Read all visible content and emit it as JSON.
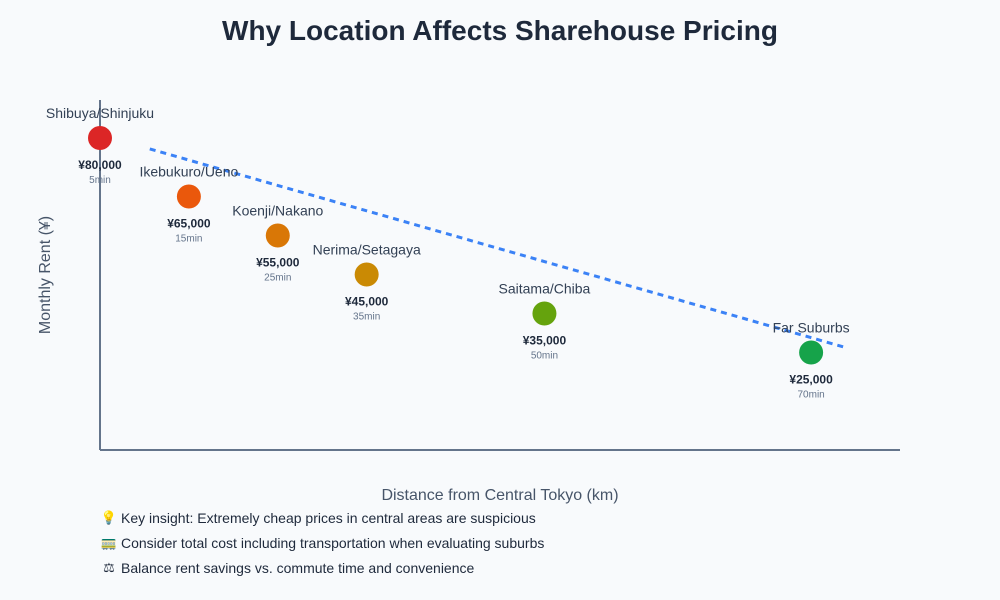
{
  "title": "Why Location Affects Sharehouse Pricing",
  "chart_data": {
    "type": "scatter",
    "title": "Why Location Affects Sharehouse Pricing",
    "xlabel": "Distance from Central Tokyo (km)",
    "ylabel": "Monthly Rent (¥)",
    "xlim": [
      0,
      45
    ],
    "ylim": [
      0,
      100000
    ],
    "grid": false,
    "points": [
      {
        "name": "Shibuya/Shinjuku",
        "x": 0,
        "y": 80000,
        "price_label": "¥80,000",
        "commute": "5min",
        "color": "#dc2626"
      },
      {
        "name": "Ikebukuro/Ueno",
        "x": 5,
        "y": 65000,
        "price_label": "¥65,000",
        "commute": "15min",
        "color": "#ea580c"
      },
      {
        "name": "Koenji/Nakano",
        "x": 10,
        "y": 55000,
        "price_label": "¥55,000",
        "commute": "25min",
        "color": "#d97706"
      },
      {
        "name": "Nerima/Setagaya",
        "x": 15,
        "y": 45000,
        "price_label": "¥45,000",
        "commute": "35min",
        "color": "#ca8a04"
      },
      {
        "name": "Saitama/Chiba",
        "x": 25,
        "y": 35000,
        "price_label": "¥35,000",
        "commute": "50min",
        "color": "#65a30d"
      },
      {
        "name": "Far Suburbs",
        "x": 40,
        "y": 25000,
        "price_label": "¥25,000",
        "commute": "70min",
        "color": "#16a34a"
      }
    ],
    "trendline": {
      "from": [
        2.8,
        77200
      ],
      "to": [
        42,
        26200
      ],
      "color": "#3b82f6",
      "style": "dotted"
    }
  },
  "notes": [
    {
      "icon": "lightbulb-icon",
      "glyph": "💡",
      "text": "Key insight: Extremely cheap prices in central areas are suspicious"
    },
    {
      "icon": "train-icon",
      "glyph": "🚃",
      "text": "Consider total cost including transportation when evaluating suburbs"
    },
    {
      "icon": "balance-scale-icon",
      "glyph": "⚖",
      "text": "Balance rent savings vs. commute time and convenience"
    }
  ]
}
